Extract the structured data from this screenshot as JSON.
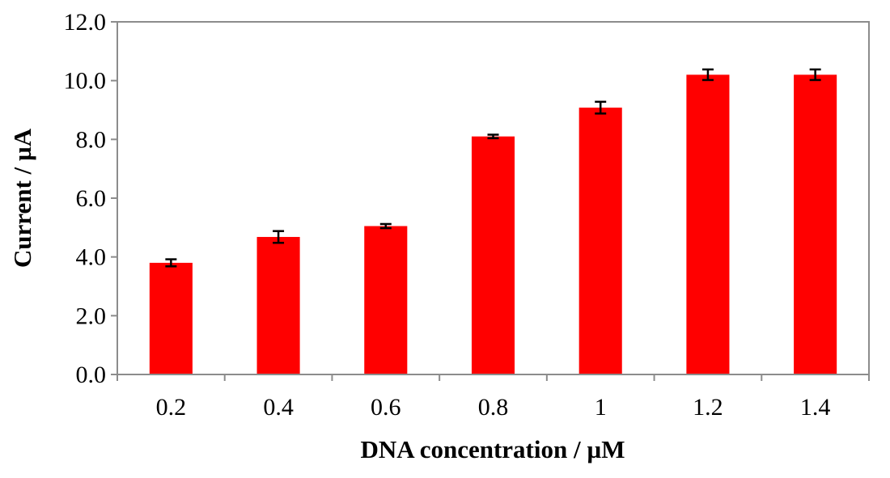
{
  "chart_data": {
    "type": "bar",
    "title": "",
    "xlabel": "DNA concentration  / µM",
    "ylabel": "Current / µA",
    "categories": [
      "0.2",
      "0.4",
      "0.6",
      "0.8",
      "1",
      "1.2",
      "1.4"
    ],
    "values": [
      3.8,
      4.68,
      5.05,
      8.1,
      9.08,
      10.2,
      10.2
    ],
    "errors": [
      0.12,
      0.2,
      0.07,
      0.06,
      0.2,
      0.18,
      0.18
    ],
    "ylim": [
      0,
      12
    ],
    "yticks": [
      "0.0",
      "2.0",
      "4.0",
      "6.0",
      "8.0",
      "10.0",
      "12.0"
    ],
    "bar_color": "#ff0000",
    "error_bar_color": "#000000",
    "grid": false,
    "legend": "none"
  }
}
